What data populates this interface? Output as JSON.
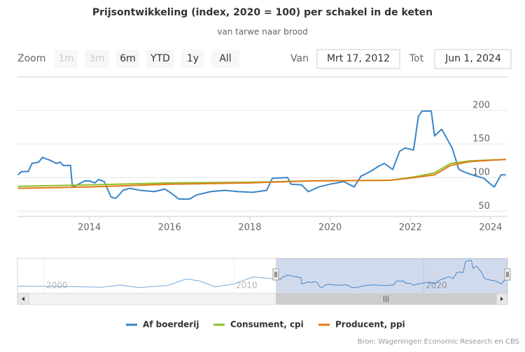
{
  "chart_data": {
    "type": "line",
    "title": "Prijsontwikkeling (index, 2020 = 100) per schakel in de keten",
    "subtitle": "van tarwe naar brood",
    "credits": "Bron: Wageningen Economic Research en CBS",
    "range_selector": {
      "label": "Zoom",
      "buttons": [
        "1m",
        "3m",
        "6m",
        "YTD",
        "1y",
        "All"
      ],
      "disabled": [
        "1m",
        "3m"
      ],
      "from_label": "Van",
      "from": "Mrt 17, 2012",
      "to_label": "Tot",
      "to": "Jun 1, 2024"
    },
    "xlim": [
      2012.21,
      2024.42
    ],
    "xticks": [
      2014,
      2016,
      2018,
      2020,
      2022,
      2024
    ],
    "ylim": [
      42,
      250
    ],
    "yticks": [
      50,
      100,
      150,
      200
    ],
    "grid": true,
    "series": [
      {
        "name": "Af boerderij",
        "color": "#3a85c8",
        "x": [
          2012.22,
          2012.31,
          2012.48,
          2012.57,
          2012.74,
          2012.83,
          2013.01,
          2013.18,
          2013.27,
          2013.35,
          2013.53,
          2013.58,
          2013.7,
          2013.88,
          2014.0,
          2014.14,
          2014.23,
          2014.37,
          2014.54,
          2014.66,
          2014.84,
          2015.01,
          2015.27,
          2015.62,
          2015.88,
          2016.06,
          2016.23,
          2016.5,
          2016.67,
          2017.02,
          2017.37,
          2017.72,
          2018.07,
          2018.42,
          2018.56,
          2018.94,
          2019.03,
          2019.29,
          2019.46,
          2019.72,
          2019.99,
          2020.34,
          2020.6,
          2020.77,
          2021.03,
          2021.21,
          2021.35,
          2021.56,
          2021.73,
          2021.87,
          2022.08,
          2022.2,
          2022.29,
          2022.52,
          2022.6,
          2022.78,
          2023.04,
          2023.21,
          2023.39,
          2023.65,
          2023.83,
          2024.0,
          2024.09,
          2024.26,
          2024.38
        ],
        "values": [
          104,
          109,
          109,
          121,
          123,
          130,
          126,
          121,
          123,
          118,
          118,
          86,
          89,
          95,
          95,
          92,
          97,
          94,
          71,
          69,
          81,
          84,
          81,
          79,
          83,
          76,
          68,
          68,
          74,
          79,
          81,
          79,
          78,
          81,
          99,
          100,
          90,
          89,
          79,
          86,
          90,
          94,
          86,
          102,
          110,
          117,
          121,
          112,
          139,
          144,
          141,
          191,
          199,
          199,
          162,
          172,
          144,
          112,
          107,
          102,
          99,
          90,
          86,
          104,
          104
        ]
      },
      {
        "name": "Consument, cpi",
        "color": "#8fbf2a",
        "x": [
          2012.22,
          2014.0,
          2016.0,
          2018.0,
          2019.5,
          2021.5,
          2022.1,
          2022.6,
          2023.0,
          2023.5,
          2024.38
        ],
        "values": [
          87,
          89,
          92,
          93,
          95,
          96,
          101,
          107,
          121,
          125,
          127
        ]
      },
      {
        "name": "Producent, ppi",
        "color": "#e07b1a",
        "x": [
          2012.22,
          2014.0,
          2016.0,
          2018.0,
          2019.5,
          2021.5,
          2022.1,
          2022.6,
          2023.0,
          2023.5,
          2024.38
        ],
        "values": [
          84,
          86,
          90,
          92,
          95,
          96,
          100,
          104,
          118,
          124,
          127
        ]
      }
    ],
    "navigator": {
      "xlim": [
        1998.6,
        2024.42
      ],
      "xticks": [
        2000,
        2010,
        2020
      ],
      "ylim": [
        40,
        210
      ],
      "x": [
        1998.6,
        2001,
        2003,
        2004,
        2005,
        2006.5,
        2007.5,
        2008.2,
        2009,
        2010,
        2011,
        2012.2
      ],
      "values": [
        75,
        73,
        70,
        80,
        68,
        78,
        110,
        100,
        72,
        85,
        120,
        110
      ]
    }
  }
}
